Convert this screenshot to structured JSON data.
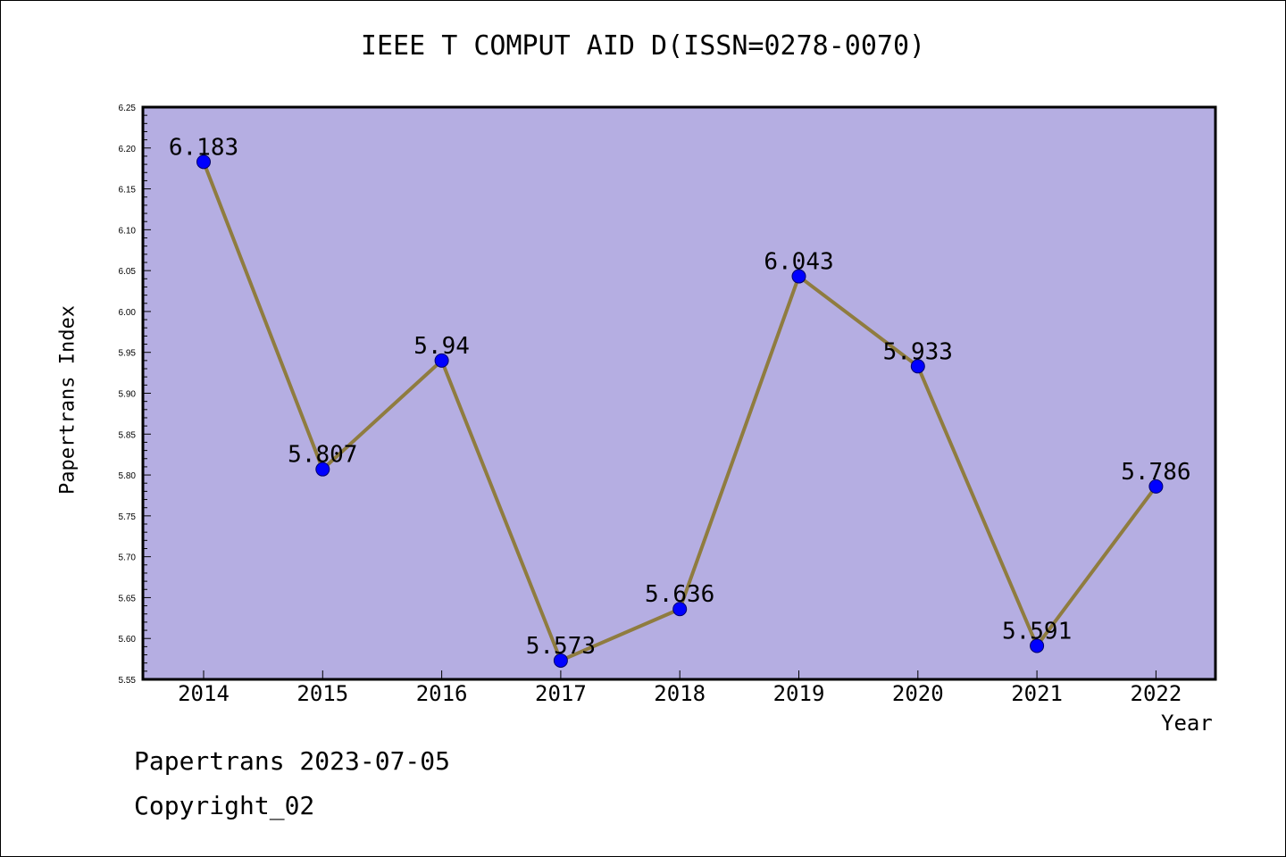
{
  "chart_data": {
    "type": "line",
    "title": "IEEE T COMPUT AID D(ISSN=0278-0070)",
    "xlabel": "Year",
    "ylabel": "Papertrans Index",
    "categories": [
      "2014",
      "2015",
      "2016",
      "2017",
      "2018",
      "2019",
      "2020",
      "2021",
      "2022"
    ],
    "series": [
      {
        "values": [
          6.183,
          5.807,
          5.94,
          5.573,
          5.636,
          6.043,
          5.933,
          5.591,
          5.786
        ]
      }
    ],
    "data_labels": [
      "6.183",
      "5.807",
      "5.94",
      "5.573",
      "5.636",
      "6.043",
      "5.933",
      "5.591",
      "5.786"
    ],
    "ylim": [
      5.55,
      6.25
    ],
    "yticks": [
      "5.55",
      "5.60",
      "5.65",
      "5.70",
      "5.75",
      "5.80",
      "5.85",
      "5.90",
      "5.95",
      "6.00",
      "6.05",
      "6.10",
      "6.15",
      "6.20",
      "6.25"
    ],
    "grid": false,
    "legend": "none",
    "colors": {
      "plot_background": "#b5aee2",
      "line": "#8f7c3f",
      "marker": "#0000ff",
      "marker_edge": "#00006b"
    }
  },
  "footer": {
    "line1": "Papertrans 2023-07-05",
    "line2": "Copyright_02"
  }
}
